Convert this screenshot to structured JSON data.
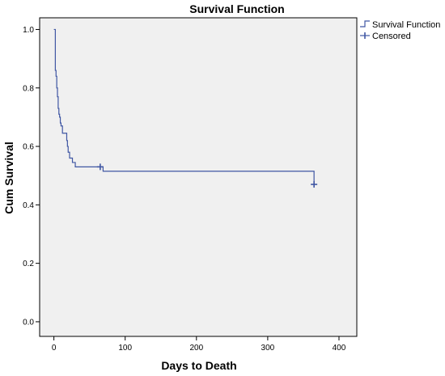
{
  "colors": {
    "plot_background": "#f0f0f0",
    "series_line": "#3f56a3",
    "axis": "#000000"
  },
  "chart_data": {
    "type": "line",
    "title": "Survival Function",
    "xlabel": "Days to Death",
    "ylabel": "Cum Survival",
    "xlim": [
      -20,
      425
    ],
    "ylim": [
      -0.05,
      1.04
    ],
    "xticks": [
      0,
      100,
      200,
      300,
      400
    ],
    "xtick_labels": [
      "0",
      "100",
      "200",
      "300",
      "400"
    ],
    "yticks": [
      0.0,
      0.2,
      0.4,
      0.6,
      0.8,
      1.0
    ],
    "ytick_labels": [
      "0.0",
      "0.2",
      "0.4",
      "0.6",
      "0.8",
      "1.0"
    ],
    "grid": false,
    "legend_position": "top-right",
    "series": [
      {
        "name": "Survival Function",
        "style": "step",
        "points": [
          [
            0,
            1.0
          ],
          [
            2,
            0.98
          ],
          [
            2,
            0.96
          ],
          [
            2,
            0.86
          ],
          [
            3,
            0.84
          ],
          [
            4,
            0.8
          ],
          [
            5,
            0.77
          ],
          [
            6,
            0.73
          ],
          [
            7,
            0.71
          ],
          [
            8,
            0.7
          ],
          [
            9,
            0.68
          ],
          [
            10,
            0.67
          ],
          [
            12,
            0.645
          ],
          [
            18,
            0.62
          ],
          [
            19,
            0.6
          ],
          [
            20,
            0.58
          ],
          [
            22,
            0.56
          ],
          [
            26,
            0.545
          ],
          [
            30,
            0.53
          ],
          [
            69,
            0.515
          ],
          [
            365,
            0.47
          ]
        ]
      },
      {
        "name": "Censored",
        "style": "marker",
        "marker": "plus",
        "points": [
          [
            65,
            0.53
          ],
          [
            365,
            0.47
          ]
        ]
      }
    ]
  }
}
